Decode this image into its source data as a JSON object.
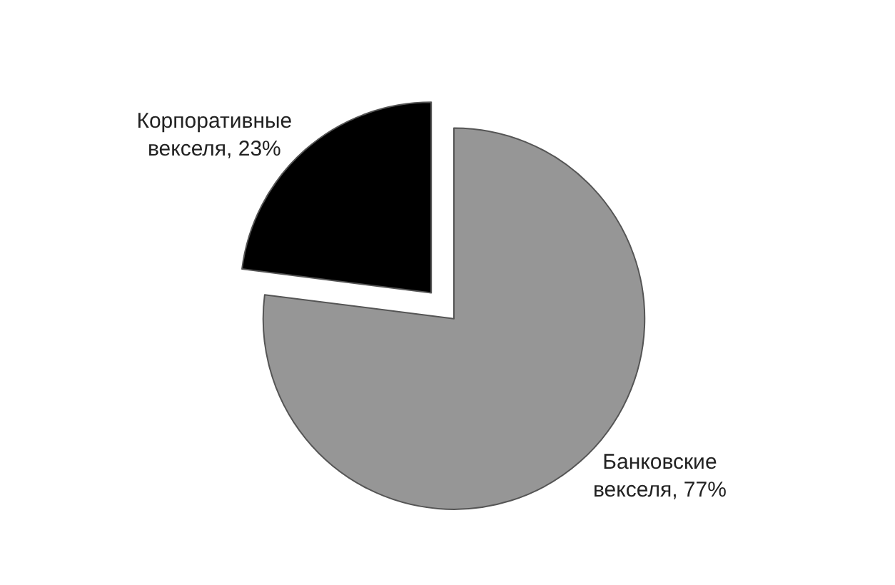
{
  "chart_data": {
    "type": "pie",
    "categories": [
      "Банковские векселя",
      "Корпоративные векселя"
    ],
    "values": [
      77,
      23
    ],
    "value_labels": [
      "77%",
      "23%"
    ],
    "colors": [
      "#969696",
      "#000000"
    ],
    "legend": false
  }
}
